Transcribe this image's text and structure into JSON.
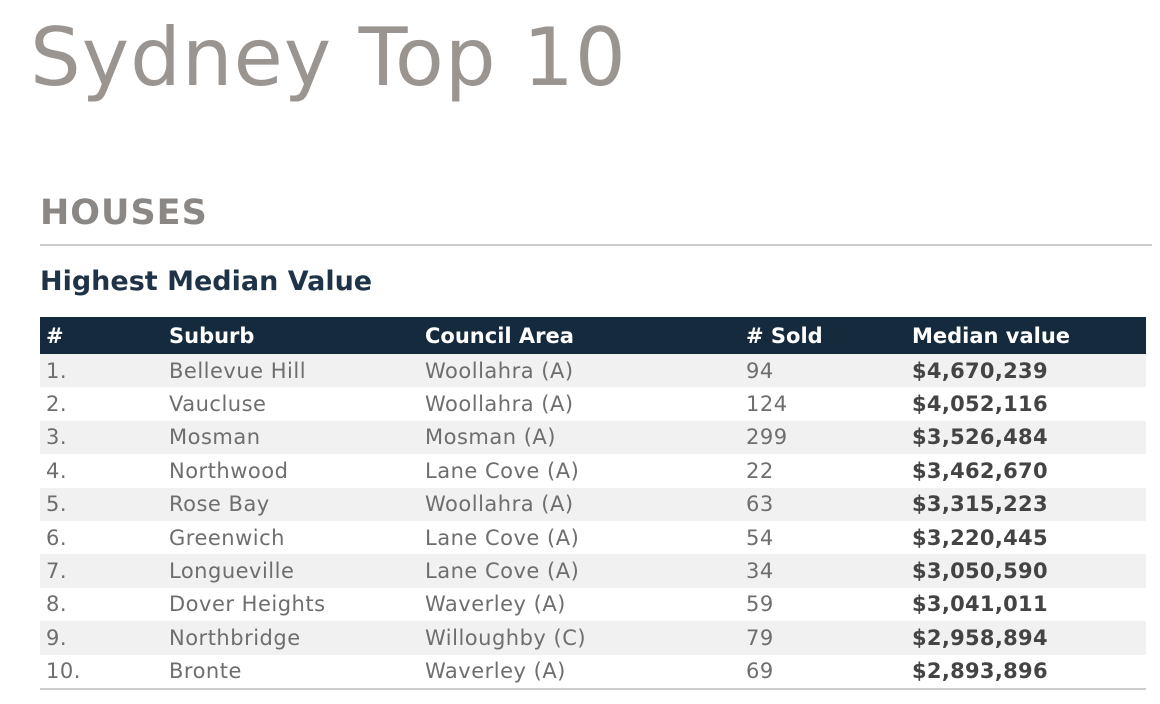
{
  "title": "Sydney Top 10",
  "section": "HOUSES",
  "subheading": "Highest Median Value",
  "table": {
    "columns": [
      "#",
      "Suburb",
      "Council Area",
      "# Sold",
      "Median value"
    ],
    "rows": [
      {
        "rank": "1.",
        "suburb": "Bellevue Hill",
        "council": "Woollahra (A)",
        "sold": "94",
        "median": "$4,670,239"
      },
      {
        "rank": "2.",
        "suburb": "Vaucluse",
        "council": "Woollahra (A)",
        "sold": "124",
        "median": "$4,052,116"
      },
      {
        "rank": "3.",
        "suburb": "Mosman",
        "council": "Mosman (A)",
        "sold": "299",
        "median": "$3,526,484"
      },
      {
        "rank": "4.",
        "suburb": "Northwood",
        "council": "Lane Cove (A)",
        "sold": "22",
        "median": "$3,462,670"
      },
      {
        "rank": "5.",
        "suburb": "Rose Bay",
        "council": "Woollahra (A)",
        "sold": "63",
        "median": "$3,315,223"
      },
      {
        "rank": "6.",
        "suburb": "Greenwich",
        "council": "Lane Cove (A)",
        "sold": "54",
        "median": "$3,220,445"
      },
      {
        "rank": "7.",
        "suburb": "Longueville",
        "council": "Lane Cove (A)",
        "sold": "34",
        "median": "$3,050,590"
      },
      {
        "rank": "8.",
        "suburb": "Dover Heights",
        "council": "Waverley (A)",
        "sold": "59",
        "median": "$3,041,011"
      },
      {
        "rank": "9.",
        "suburb": "Northbridge",
        "council": "Willoughby (C)",
        "sold": "79",
        "median": "$2,958,894"
      },
      {
        "rank": "10.",
        "suburb": "Bronte",
        "council": "Waverley (A)",
        "sold": "69",
        "median": "$2,893,896"
      }
    ]
  }
}
